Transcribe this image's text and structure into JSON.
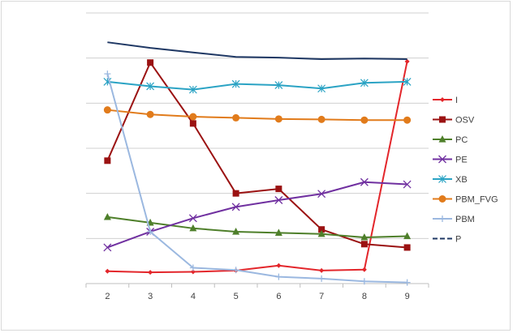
{
  "chart_data": {
    "type": "line",
    "title": "",
    "xlabel": "",
    "ylabel": "",
    "x": [
      2,
      3,
      4,
      5,
      6,
      7,
      8,
      9
    ],
    "ylim": [
      0,
      12
    ],
    "grid": true,
    "legend_position": "right",
    "series": [
      {
        "name": "I",
        "color": "#e3262b",
        "marker": "diamond",
        "values": [
          0.55,
          0.5,
          0.52,
          0.58,
          0.8,
          0.58,
          0.62,
          9.85
        ]
      },
      {
        "name": "OSV",
        "color": "#9b1212",
        "marker": "square",
        "values": [
          5.45,
          9.8,
          7.1,
          4.0,
          4.2,
          2.4,
          1.75,
          1.6
        ]
      },
      {
        "name": "PC",
        "color": "#4e7f2a",
        "marker": "triangle",
        "values": [
          2.95,
          2.7,
          2.45,
          2.3,
          2.25,
          2.2,
          2.05,
          2.1
        ]
      },
      {
        "name": "PE",
        "color": "#7030a0",
        "marker": "x",
        "values": [
          1.6,
          2.3,
          2.9,
          3.4,
          3.7,
          3.98,
          4.5,
          4.4
        ]
      },
      {
        "name": "XB",
        "color": "#2ba3c4",
        "marker": "star",
        "values": [
          8.95,
          8.75,
          8.6,
          8.85,
          8.8,
          8.65,
          8.9,
          8.95
        ]
      },
      {
        "name": "PBM_FVG",
        "color": "#e17b1b",
        "marker": "circle",
        "values": [
          7.7,
          7.5,
          7.4,
          7.35,
          7.3,
          7.28,
          7.25,
          7.25
        ]
      },
      {
        "name": "PBM",
        "color": "#9bb8e0",
        "marker": "plus",
        "values": [
          9.3,
          2.3,
          0.7,
          0.6,
          0.3,
          0.22,
          0.1,
          0.05
        ]
      },
      {
        "name": "P",
        "color": "#1f3864",
        "marker": "dash",
        "values": [
          10.7,
          10.45,
          10.25,
          10.05,
          10.02,
          9.95,
          9.98,
          9.95
        ]
      }
    ]
  }
}
